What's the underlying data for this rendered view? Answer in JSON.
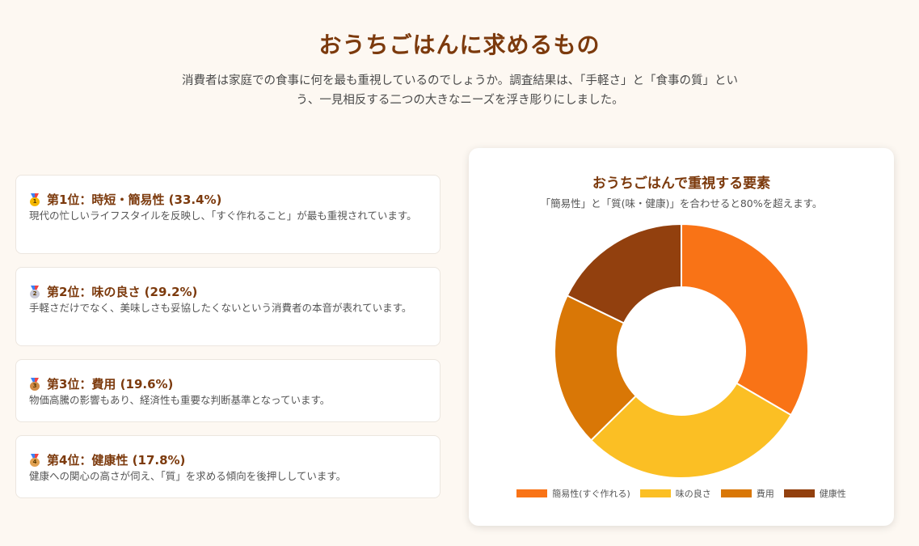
{
  "page": {
    "title": "おうちごはんに求めるもの",
    "intro": "消費者は家庭での食事に何を最も重視しているのでしょうか。調査結果は、「手軽さ」と「食事の質」という、一見相反する二つの大きなニーズを浮き彫りにしました。"
  },
  "rankings": [
    {
      "medal_icon": "gold-medal-icon",
      "medal_number": "1",
      "medal_color": "#f5b800",
      "heading": "第1位：時短・簡易性 (33.4%)",
      "description": "現代の忙しいライフスタイルを反映し、「すぐ作れること」が最も重視されています。"
    },
    {
      "medal_icon": "silver-medal-icon",
      "medal_number": "2",
      "medal_color": "#c9c9d6",
      "heading": "第2位：味の良さ (29.2%)",
      "description": "手軽さだけでなく、美味しさも妥協したくないという消費者の本音が表れています。"
    },
    {
      "medal_icon": "bronze-medal-icon",
      "medal_number": "3",
      "medal_color": "#d08a45",
      "heading": "第3位：費用 (19.6%)",
      "description": "物価高騰の影響もあり、経済性も重要な判断基準となっています。"
    },
    {
      "medal_icon": "medal-icon",
      "medal_number": "4",
      "medal_color": "#e0a050",
      "heading": "第4位：健康性 (17.8%)",
      "description": "健康への関心の高さが伺え、「質」を求める傾向を後押ししています。"
    }
  ],
  "chart_data": {
    "type": "pie",
    "donut": true,
    "title": "おうちごはんで重視する要素",
    "subtitle": "「簡易性」と「質(味・健康)」を合わせると80%を超えます。",
    "categories": [
      "簡易性(すぐ作れる)",
      "味の良さ",
      "費用",
      "健康性"
    ],
    "values": [
      33.4,
      29.2,
      19.6,
      17.8
    ],
    "colors": [
      "#f97316",
      "#fbbf24",
      "#d97706",
      "#92400e"
    ],
    "legend": "bottom"
  }
}
